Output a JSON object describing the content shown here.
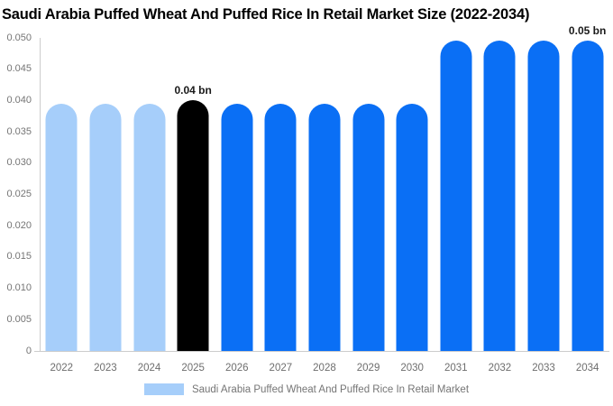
{
  "chart_data": {
    "type": "bar",
    "title": "Saudi Arabia Puffed Wheat And Puffed Rice In Retail Market Size (2022-2034)",
    "unit": "bn",
    "categories": [
      "2022",
      "2023",
      "2024",
      "2025",
      "2026",
      "2027",
      "2028",
      "2029",
      "2030",
      "2031",
      "2032",
      "2033",
      "2034"
    ],
    "values": [
      0.0395,
      0.0395,
      0.0395,
      0.04,
      0.0395,
      0.0395,
      0.0395,
      0.0395,
      0.0395,
      0.0495,
      0.0495,
      0.0495,
      0.0495
    ],
    "bar_labels": [
      "",
      "",
      "",
      "0.04 bn",
      "",
      "",
      "",
      "",
      "",
      "",
      "",
      "",
      "0.05 bn"
    ],
    "bar_colors": [
      "#A6CEFA",
      "#A6CEFA",
      "#A6CEFA",
      "#000000",
      "#0A6FF5",
      "#0A6FF5",
      "#0A6FF5",
      "#0A6FF5",
      "#0A6FF5",
      "#0A6FF5",
      "#0A6FF5",
      "#0A6FF5",
      "#0A6FF5"
    ],
    "xlabel": "",
    "ylabel": "",
    "ylim": [
      0,
      0.05
    ],
    "ytick_labels": [
      "0",
      "0.005",
      "0.010",
      "0.015",
      "0.020",
      "0.025",
      "0.030",
      "0.035",
      "0.040",
      "0.045",
      "0.050"
    ],
    "grid": false,
    "legend_position": "bottom-center",
    "legend": {
      "label": "Saudi Arabia Puffed Wheat And Puffed Rice In Retail Market",
      "swatch_color": "#A6CEFA"
    },
    "colors": {
      "past_bars": "#A6CEFA",
      "highlight_bar": "#000000",
      "forecast_bars": "#0A6FF5",
      "axis_text": "#757575",
      "axis_line": "#CCCCCC",
      "title_text": "#000000"
    }
  }
}
